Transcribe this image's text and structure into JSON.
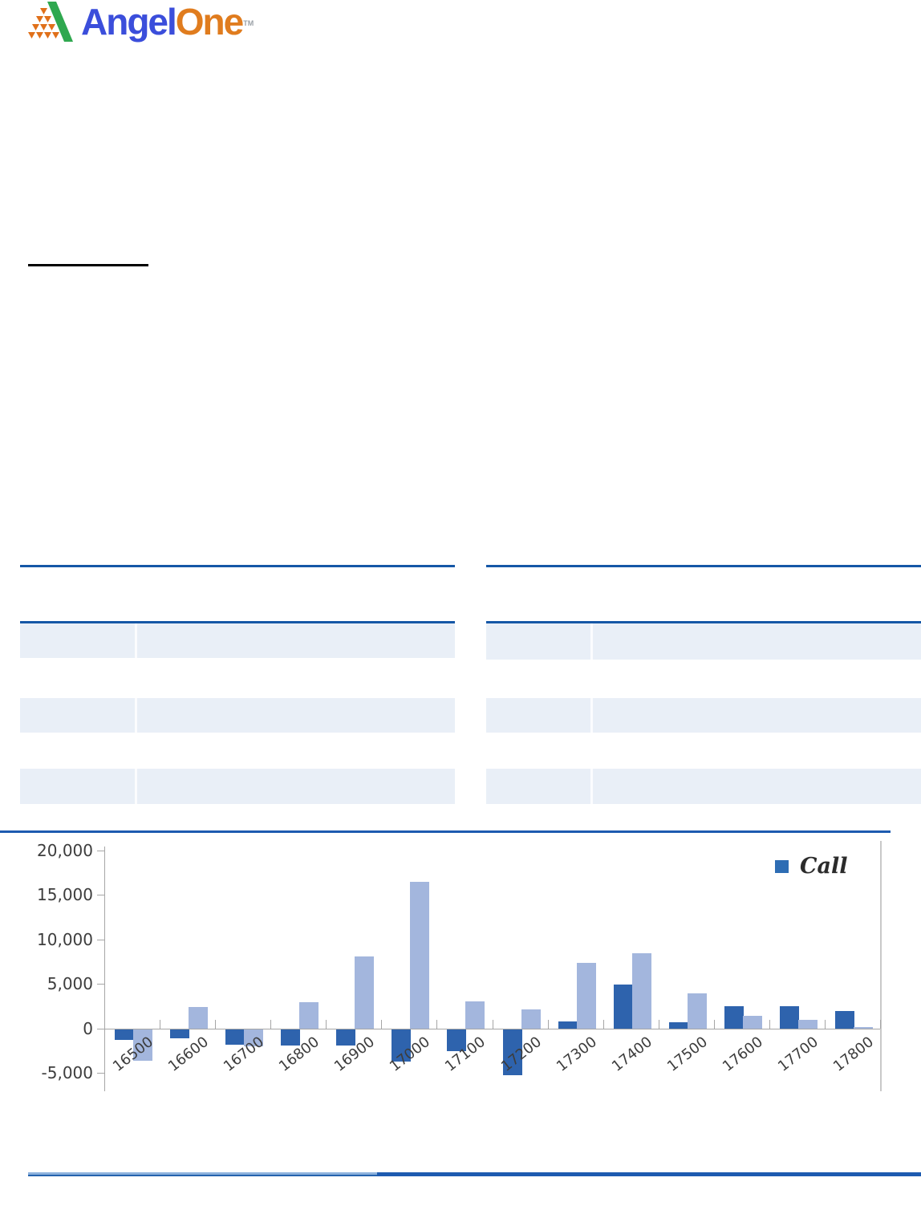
{
  "brand": {
    "part1": "Angel",
    "part2": "One",
    "tm": "TM"
  },
  "tables": {
    "left": {
      "rows": 3
    },
    "right": {
      "rows": 3
    }
  },
  "chart_data": {
    "type": "bar",
    "title": "",
    "xlabel": "",
    "ylabel": "",
    "categories": [
      "16500",
      "16600",
      "16700",
      "16800",
      "16900",
      "17000",
      "17100",
      "17200",
      "17300",
      "17400",
      "17500",
      "17600",
      "17700",
      "17800"
    ],
    "series": [
      {
        "name": "Call",
        "color": "#2e63ad",
        "values": [
          -1200,
          -1000,
          -1700,
          -1800,
          -1800,
          -3600,
          -2400,
          -5100,
          800,
          5000,
          700,
          2500,
          2500,
          2000
        ]
      },
      {
        "name": "",
        "color": "#a3b6dd",
        "values": [
          -3500,
          2400,
          -1900,
          3000,
          8100,
          16500,
          3100,
          2200,
          7400,
          8500,
          4000,
          1400,
          1000,
          150
        ]
      }
    ],
    "legend": {
      "position": "top-right",
      "entries": [
        {
          "label": "Call",
          "color": "#2e6db4"
        }
      ]
    },
    "ylim": [
      -5000,
      20000
    ],
    "ytick_interval": 5000,
    "ytick_labels": [
      "20,000",
      "15,000",
      "10,000",
      "5,000",
      "0",
      "-5,000"
    ],
    "grid": false
  },
  "colors": {
    "table_rule": "#1557a6",
    "table_row": "#e9eff7",
    "divider_rule": "#1d5bb0",
    "axis": "#a6a6a6",
    "logo_blue": "#3b4edb",
    "logo_orange": "#e07c1e",
    "logo_green": "#2fa84f",
    "logo_tri_orange": "#e0701a"
  }
}
